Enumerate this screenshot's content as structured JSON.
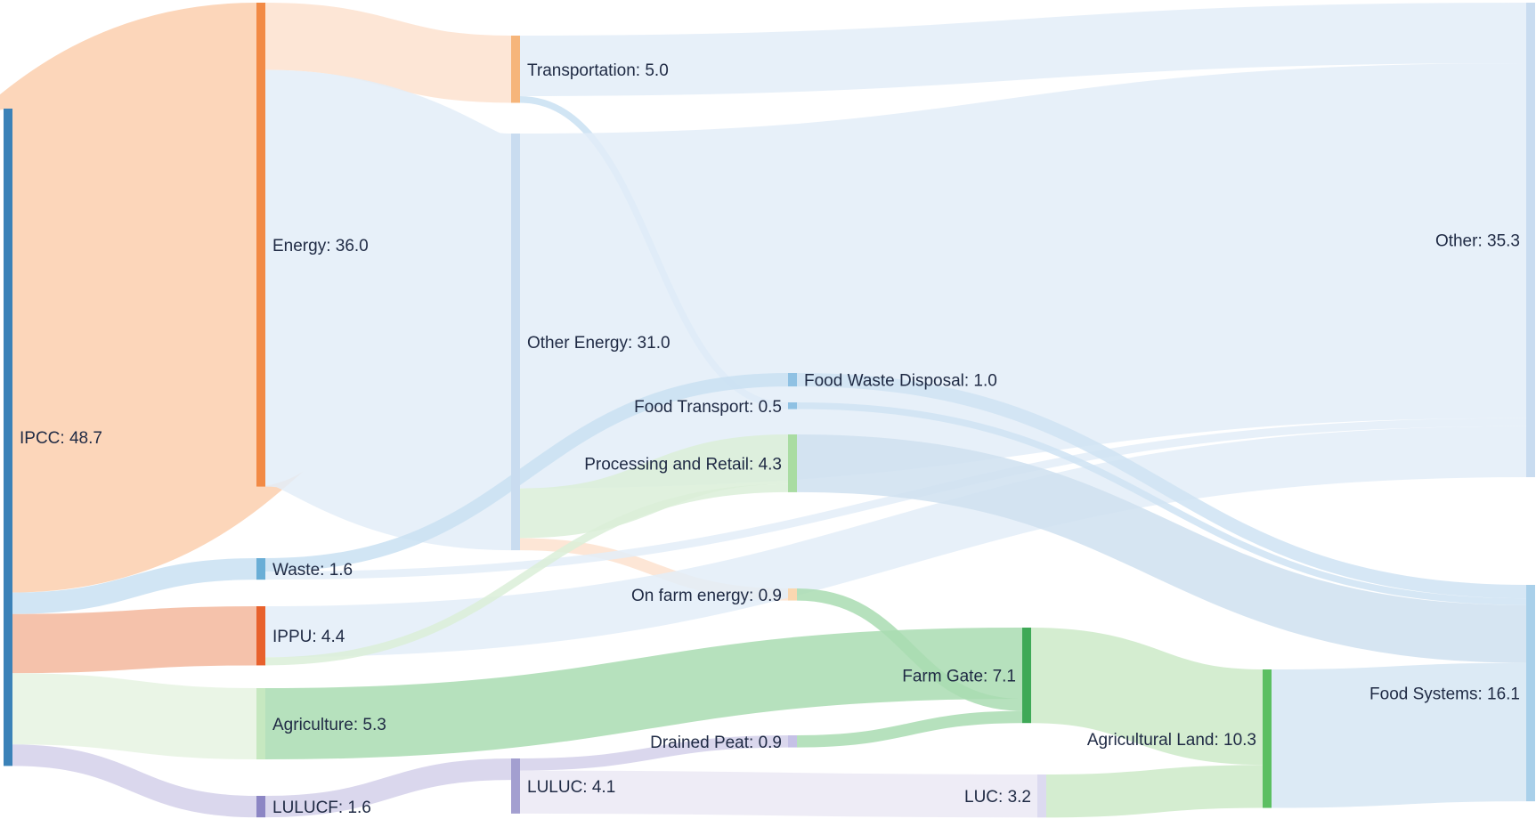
{
  "nodes": [
    {
      "id": "ipcc",
      "label": "IPCC: 48.7",
      "color": "#3b82b8"
    },
    {
      "id": "energy",
      "label": "Energy: 36.0",
      "color": "#f28a45"
    },
    {
      "id": "waste",
      "label": "Waste: 1.6",
      "color": "#6aaed6"
    },
    {
      "id": "ippu",
      "label": "IPPU: 4.4",
      "color": "#e8612c"
    },
    {
      "id": "agriculture",
      "label": "Agriculture: 5.3",
      "color": "#c6e8c0"
    },
    {
      "id": "lulucf",
      "label": "LULUCF: 1.6",
      "color": "#8c86c4"
    },
    {
      "id": "transportation",
      "label": "Transportation: 5.0",
      "color": "#f6b57a"
    },
    {
      "id": "other_energy",
      "label": "Other Energy: 31.0",
      "color": "#c9dcf0"
    },
    {
      "id": "luluc",
      "label": "LULUC: 4.1",
      "color": "#a39fd0"
    },
    {
      "id": "food_waste_disposal",
      "label": "Food Waste Disposal: 1.0",
      "color": "#8fc1e3"
    },
    {
      "id": "food_transport",
      "label": "Food Transport: 0.5",
      "color": "#8fc1e3"
    },
    {
      "id": "processing_retail",
      "label": "Processing and Retail: 4.3",
      "color": "#a9dca2"
    },
    {
      "id": "on_farm_energy",
      "label": "On farm energy: 0.9",
      "color": "#fad7b0"
    },
    {
      "id": "drained_peat",
      "label": "Drained Peat: 0.9",
      "color": "#c5c1e6"
    },
    {
      "id": "farm_gate",
      "label": "Farm Gate: 7.1",
      "color": "#3fa957"
    },
    {
      "id": "luc",
      "label": "LUC: 3.2",
      "color": "#dcdaf0"
    },
    {
      "id": "agricultural_land",
      "label": "Agricultural Land: 10.3",
      "color": "#5cbf62"
    },
    {
      "id": "other",
      "label": "Other: 35.3",
      "color": "#c9dcf0"
    },
    {
      "id": "food_systems",
      "label": "Food Systems: 16.1",
      "color": "#a9d0ea"
    }
  ],
  "links": [
    {
      "source": "ipcc",
      "target": "energy",
      "value": 36.0,
      "color": "#fbcfae"
    },
    {
      "source": "ipcc",
      "target": "waste",
      "value": 1.6,
      "color": "#c9e1f2"
    },
    {
      "source": "ipcc",
      "target": "ippu",
      "value": 4.4,
      "color": "#f3b79c"
    },
    {
      "source": "ipcc",
      "target": "agriculture",
      "value": 5.3,
      "color": "#e6f3e2"
    },
    {
      "source": "ipcc",
      "target": "lulucf",
      "value": 1.6,
      "color": "#d3d0ea"
    },
    {
      "source": "energy",
      "target": "transportation",
      "value": 5.0,
      "color": "#fde2cf"
    },
    {
      "source": "energy",
      "target": "other_energy",
      "value": 31.0,
      "color": "#e3edf8"
    },
    {
      "source": "transportation",
      "target": "other",
      "value": 4.5,
      "color": "#e3edf8"
    },
    {
      "source": "transportation",
      "target": "food_transport",
      "value": 0.5,
      "color": "#c9e1f2"
    },
    {
      "source": "other_energy",
      "target": "other",
      "value": 26.4,
      "color": "#e3edf8"
    },
    {
      "source": "other_energy",
      "target": "processing_retail",
      "value": 3.7,
      "color": "#dbefd8"
    },
    {
      "source": "other_energy",
      "target": "on_farm_energy",
      "value": 0.9,
      "color": "#fde2cf"
    },
    {
      "source": "waste",
      "target": "food_waste_disposal",
      "value": 1.0,
      "color": "#c9e1f2"
    },
    {
      "source": "waste",
      "target": "other",
      "value": 0.6,
      "color": "#e3edf8"
    },
    {
      "source": "ippu",
      "target": "other",
      "value": 3.8,
      "color": "#e3edf8"
    },
    {
      "source": "ippu",
      "target": "processing_retail",
      "value": 0.6,
      "color": "#dbefd8"
    },
    {
      "source": "agriculture",
      "target": "farm_gate",
      "value": 5.3,
      "color": "#a9dcb2"
    },
    {
      "source": "lulucf",
      "target": "luluc",
      "value": 1.6,
      "color": "#d3d0ea"
    },
    {
      "source": "luluc",
      "target": "drained_peat",
      "value": 0.9,
      "color": "#d3d0ea"
    },
    {
      "source": "luluc",
      "target": "luc",
      "value": 3.2,
      "color": "#ebe9f5"
    },
    {
      "source": "food_waste_disposal",
      "target": "food_systems",
      "value": 1.0,
      "color": "#cfe3f3"
    },
    {
      "source": "food_transport",
      "target": "food_systems",
      "value": 0.5,
      "color": "#cfe3f3"
    },
    {
      "source": "processing_retail",
      "target": "food_systems",
      "value": 4.3,
      "color": "#cfe1f0"
    },
    {
      "source": "on_farm_energy",
      "target": "farm_gate",
      "value": 0.9,
      "color": "#a9dcb2"
    },
    {
      "source": "drained_peat",
      "target": "farm_gate",
      "value": 0.9,
      "color": "#a9dcb2"
    },
    {
      "source": "farm_gate",
      "target": "agricultural_land",
      "value": 7.1,
      "color": "#cdeac8"
    },
    {
      "source": "luc",
      "target": "agricultural_land",
      "value": 3.2,
      "color": "#cdeac8"
    },
    {
      "source": "agricultural_land",
      "target": "food_systems",
      "value": 10.3,
      "color": "#d6e6f3"
    }
  ]
}
